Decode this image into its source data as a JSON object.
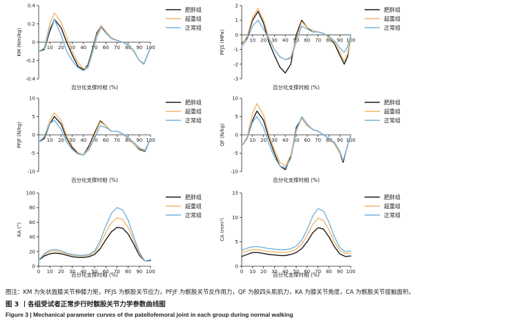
{
  "chart_data": [
    {
      "type": "line",
      "ylabel": "KM (Nm/kg)",
      "xlabel": "百分化支撑时相 (%)",
      "ylim": [
        -0.4,
        0.4
      ],
      "yticks": [
        "0.4",
        "0.2",
        "0",
        "-0.2",
        "-0.4"
      ],
      "ytick_values": [
        0.4,
        0.2,
        0,
        -0.2,
        -0.4
      ],
      "xticks": [
        "10",
        "20",
        "30",
        "40",
        "50",
        "60",
        "70",
        "80",
        "90",
        "100"
      ],
      "x_axis_at": 0,
      "legend": [
        "肥胖组",
        "超重组",
        "正常组"
      ],
      "x": [
        0,
        5,
        10,
        14,
        20,
        25,
        30,
        35,
        40,
        44,
        48,
        52,
        56,
        60,
        65,
        70,
        75,
        80,
        85,
        90,
        94,
        97,
        100
      ],
      "series": [
        {
          "name": "肥胖组",
          "values": [
            -0.1,
            -0.08,
            0.12,
            0.25,
            0.16,
            0.0,
            -0.14,
            -0.26,
            -0.3,
            -0.25,
            -0.08,
            0.1,
            0.18,
            0.1,
            0.04,
            0.02,
            0.0,
            -0.03,
            -0.1,
            -0.2,
            -0.24,
            -0.15,
            -0.06
          ]
        },
        {
          "name": "超重组",
          "values": [
            -0.1,
            -0.06,
            0.2,
            0.32,
            0.22,
            0.06,
            -0.1,
            -0.22,
            -0.29,
            -0.27,
            -0.1,
            0.08,
            0.18,
            0.12,
            0.05,
            0.02,
            0.0,
            -0.03,
            -0.1,
            -0.2,
            -0.23,
            -0.15,
            -0.06
          ]
        },
        {
          "name": "正常组",
          "values": [
            -0.1,
            -0.07,
            0.15,
            0.25,
            0.08,
            -0.1,
            -0.2,
            -0.28,
            -0.31,
            -0.28,
            -0.12,
            0.06,
            0.16,
            0.1,
            0.04,
            0.02,
            0.0,
            -0.03,
            -0.09,
            -0.2,
            -0.24,
            -0.15,
            -0.06
          ]
        }
      ]
    },
    {
      "type": "line",
      "ylabel": "PFJS (MPa)",
      "xlabel": "百分化支撑时相 (%)",
      "ylim": [
        -3,
        2
      ],
      "yticks": [
        "2",
        "1",
        "0",
        "-1",
        "-2",
        "-3"
      ],
      "ytick_values": [
        2,
        1,
        0,
        -1,
        -2,
        -3
      ],
      "xticks": [
        "10",
        "20",
        "30",
        "40",
        "50",
        "60",
        "70",
        "80",
        "90",
        "100"
      ],
      "x_axis_at": 0,
      "legend": [
        "肥胖组",
        "超重组",
        "正常组"
      ],
      "x": [
        0,
        5,
        10,
        15,
        20,
        25,
        30,
        35,
        40,
        45,
        50,
        55,
        60,
        65,
        70,
        75,
        80,
        85,
        90,
        94,
        97,
        100
      ],
      "series": [
        {
          "name": "肥胖组",
          "values": [
            -0.6,
            -0.2,
            1.0,
            1.6,
            0.8,
            -0.5,
            -1.4,
            -2.2,
            -2.6,
            -2.0,
            0.0,
            1.0,
            0.5,
            0.2,
            0.2,
            0.1,
            -0.2,
            -0.6,
            -1.4,
            -2.0,
            -1.5,
            0.0
          ]
        },
        {
          "name": "超重组",
          "values": [
            -0.7,
            -0.1,
            1.2,
            1.8,
            1.0,
            -0.2,
            -1.0,
            -1.5,
            -1.7,
            -1.5,
            -0.3,
            0.9,
            0.5,
            0.3,
            0.2,
            0.1,
            -0.2,
            -0.5,
            -1.2,
            -1.8,
            -1.3,
            0.0
          ]
        },
        {
          "name": "正常组",
          "values": [
            -0.8,
            -0.3,
            0.6,
            1.0,
            0.4,
            -0.3,
            -1.0,
            -1.5,
            -1.7,
            -1.6,
            -0.5,
            0.6,
            0.4,
            0.2,
            0.2,
            0.1,
            -0.1,
            -0.4,
            -0.9,
            -1.2,
            -0.8,
            0.0
          ]
        }
      ]
    },
    {
      "type": "line",
      "ylabel": "PFJF (N/kg)",
      "xlabel": "百分化支撑时相 (%)",
      "ylim": [
        -10,
        10
      ],
      "yticks": [
        "10",
        "5",
        "0",
        "-5",
        "-10"
      ],
      "ytick_values": [
        10,
        5,
        0,
        -5,
        -10
      ],
      "xticks": [
        "10",
        "20",
        "30",
        "40",
        "50",
        "60",
        "70",
        "80",
        "90",
        "100"
      ],
      "x_axis_at": 0,
      "legend": [
        "肥胖组",
        "超重组",
        "正常组"
      ],
      "x": [
        0,
        5,
        10,
        14,
        20,
        25,
        30,
        35,
        40,
        45,
        50,
        55,
        60,
        65,
        70,
        75,
        80,
        85,
        90,
        95,
        100
      ],
      "series": [
        {
          "name": "肥胖组",
          "values": [
            -2.0,
            -1.0,
            3.0,
            5.0,
            3.0,
            -1.0,
            -3.5,
            -5.0,
            -5.5,
            -3.0,
            0.5,
            3.8,
            2.5,
            1.0,
            1.0,
            0.3,
            -1.0,
            -2.5,
            -4.0,
            -4.5,
            -1.0
          ]
        },
        {
          "name": "超重组",
          "values": [
            -2.0,
            -0.5,
            4.0,
            6.0,
            4.0,
            0.0,
            -3.0,
            -4.8,
            -5.5,
            -3.5,
            0.0,
            3.5,
            2.5,
            1.0,
            1.0,
            0.3,
            -1.0,
            -2.5,
            -3.8,
            -4.3,
            -1.0
          ]
        },
        {
          "name": "正常组",
          "values": [
            -2.0,
            -0.5,
            3.0,
            4.0,
            1.5,
            -2.0,
            -4.0,
            -5.2,
            -5.5,
            -4.0,
            -1.0,
            2.5,
            2.0,
            1.0,
            1.0,
            0.3,
            -0.8,
            -2.0,
            -3.5,
            -4.2,
            -1.0
          ]
        }
      ]
    },
    {
      "type": "line",
      "ylabel": "QF (N/kg)",
      "xlabel": "百分化支撑时相 (%)",
      "ylim": [
        -10,
        10
      ],
      "yticks": [
        "10",
        "5",
        "0",
        "-5",
        "-10"
      ],
      "ytick_values": [
        10,
        5,
        0,
        -5,
        -10
      ],
      "xticks": [
        "10",
        "20",
        "30",
        "40",
        "50",
        "60",
        "70",
        "80",
        "90",
        "100"
      ],
      "x_axis_at": 0,
      "legend": [
        "肥胖组",
        "超重组",
        "正常组"
      ],
      "x": [
        0,
        5,
        10,
        14,
        20,
        25,
        30,
        35,
        40,
        45,
        50,
        55,
        60,
        65,
        70,
        75,
        80,
        85,
        90,
        93,
        96,
        100
      ],
      "series": [
        {
          "name": "肥胖组",
          "values": [
            -3.0,
            -1.0,
            4.0,
            6.5,
            4.0,
            -1.0,
            -5.0,
            -8.5,
            -9.5,
            -6.0,
            2.0,
            4.5,
            2.5,
            1.5,
            1.0,
            0.0,
            -1.0,
            -2.5,
            -5.0,
            -7.5,
            -4.0,
            0.0
          ]
        },
        {
          "name": "超重组",
          "values": [
            -3.0,
            -0.5,
            6.0,
            8.5,
            5.5,
            0.0,
            -4.0,
            -7.5,
            -8.5,
            -5.5,
            1.5,
            4.5,
            2.5,
            1.5,
            1.0,
            0.0,
            -1.0,
            -2.5,
            -5.0,
            -7.0,
            -4.0,
            0.0
          ]
        },
        {
          "name": "正常组",
          "values": [
            -3.0,
            -1.0,
            3.5,
            5.0,
            2.0,
            -2.5,
            -6.0,
            -8.5,
            -9.0,
            -6.5,
            1.0,
            5.0,
            3.0,
            1.5,
            1.0,
            0.0,
            -1.0,
            -2.0,
            -4.5,
            -7.0,
            -4.0,
            0.0
          ]
        }
      ]
    },
    {
      "type": "line",
      "ylabel": "KA (°)",
      "xlabel": "百分化支撑时相 (%)",
      "ylim": [
        0,
        100
      ],
      "yticks": [
        "100",
        "80",
        "60",
        "40",
        "20",
        "0"
      ],
      "ytick_values": [
        100,
        80,
        60,
        40,
        20,
        0
      ],
      "xticks": [
        "0",
        "10",
        "20",
        "30",
        "40",
        "50",
        "60",
        "70",
        "80",
        "90",
        "100"
      ],
      "x_axis_at": 0,
      "legend": [
        "肥胖组",
        "超重组",
        "正常组"
      ],
      "x": [
        0,
        5,
        10,
        15,
        20,
        25,
        30,
        35,
        40,
        45,
        50,
        55,
        60,
        65,
        70,
        75,
        80,
        85,
        90,
        95,
        100
      ],
      "series": [
        {
          "name": "肥胖组",
          "values": [
            8,
            14,
            17,
            18,
            17,
            15,
            13,
            12,
            12,
            13,
            16,
            24,
            36,
            47,
            53,
            52,
            44,
            30,
            15,
            7,
            8
          ]
        },
        {
          "name": "超重组",
          "values": [
            9,
            16,
            20,
            21,
            19,
            17,
            15,
            14,
            14,
            15,
            19,
            30,
            46,
            59,
            66,
            64,
            53,
            35,
            17,
            7,
            9
          ]
        },
        {
          "name": "正常组",
          "values": [
            8,
            17,
            22,
            23,
            21,
            18,
            16,
            15,
            15,
            16,
            21,
            35,
            55,
            72,
            80,
            77,
            63,
            40,
            19,
            7,
            9
          ]
        }
      ]
    },
    {
      "type": "line",
      "ylabel": "CA (mm²)",
      "xlabel": "百分化支撑时相 (%)",
      "ylim": [
        0,
        15
      ],
      "yticks": [
        "15",
        "10",
        "5",
        "0"
      ],
      "ytick_values": [
        15,
        10,
        5,
        0
      ],
      "xticks": [
        "0",
        "10",
        "20",
        "30",
        "40",
        "50",
        "60",
        "70",
        "80",
        "90",
        "100"
      ],
      "x_axis_at": 0,
      "legend": [
        "肥胖组",
        "超重组",
        "正常组"
      ],
      "x": [
        0,
        5,
        10,
        15,
        20,
        25,
        30,
        35,
        40,
        45,
        50,
        55,
        60,
        65,
        70,
        75,
        80,
        85,
        90,
        95,
        100
      ],
      "series": [
        {
          "name": "肥胖组",
          "values": [
            2.0,
            2.4,
            2.8,
            2.8,
            2.6,
            2.4,
            2.3,
            2.2,
            2.2,
            2.4,
            2.8,
            3.6,
            5.0,
            6.8,
            7.9,
            7.6,
            6.0,
            4.0,
            2.5,
            2.0,
            2.1
          ]
        },
        {
          "name": "超重组",
          "values": [
            2.8,
            3.1,
            3.4,
            3.4,
            3.2,
            3.0,
            2.9,
            2.8,
            2.8,
            3.0,
            3.5,
            4.5,
            6.3,
            8.5,
            9.8,
            9.4,
            7.4,
            5.0,
            3.2,
            2.6,
            2.7
          ]
        },
        {
          "name": "正常组",
          "values": [
            3.3,
            3.7,
            4.0,
            4.0,
            3.8,
            3.6,
            3.5,
            3.4,
            3.4,
            3.6,
            4.1,
            5.3,
            7.5,
            10.2,
            11.8,
            11.3,
            9.0,
            6.0,
            3.8,
            3.0,
            3.1
          ]
        }
      ]
    }
  ],
  "colors": {
    "肥胖组": "#1a1a1a",
    "超重组": "#f2b56b",
    "正常组": "#74b3de"
  },
  "caption": {
    "note": "图注：KM 为矢状面膝关节伸膝力矩，PFJS 为髌股关节应力，PFJF 为髌股关节反作用力，QF 为股四头肌肌力，KA 为膝关节角度，CA 为髌股关节接触面积。",
    "title_cn": "图 3 丨各组受试者正常步行时髌股关节力学参数曲线图",
    "title_en": "Figure 3 | Mechanical parameter curves of the patellofemoral joint in each group during normal walking"
  }
}
